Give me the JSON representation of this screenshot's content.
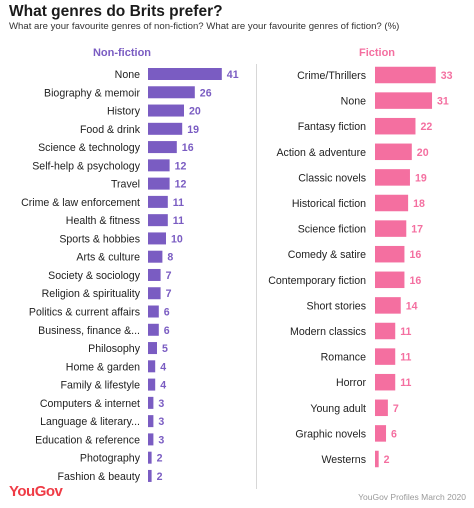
{
  "header": {
    "title": "What genres do Brits prefer?",
    "subtitle": "What are your favourite genres of non-fiction? What are your favourite genres of fiction? (%)"
  },
  "footer": {
    "logo": "YouGov",
    "source": "YouGov Profiles March 2020"
  },
  "colors": {
    "nonfiction": "#7a5cc2",
    "fiction": "#f46fa0"
  },
  "chart_data": [
    {
      "type": "bar",
      "orientation": "horizontal",
      "title": "Non-fiction",
      "categories": [
        "None",
        "Biography & memoir",
        "History",
        "Food & drink",
        "Science & technology",
        "Self-help & psychology",
        "Travel",
        "Crime & law enforcement",
        "Health & fitness",
        "Sports & hobbies",
        "Arts & culture",
        "Society & sociology",
        "Religion & spirituality",
        "Politics & current affairs",
        "Business, finance &...",
        "Philosophy",
        "Home & garden",
        "Family & lifestyle",
        "Computers & internet",
        "Language & literary...",
        "Education & reference",
        "Photography",
        "Fashion & beauty"
      ],
      "values": [
        41,
        26,
        20,
        19,
        16,
        12,
        12,
        11,
        11,
        10,
        8,
        7,
        7,
        6,
        6,
        5,
        4,
        4,
        3,
        3,
        3,
        2,
        2
      ],
      "color": "#7a5cc2"
    },
    {
      "type": "bar",
      "orientation": "horizontal",
      "title": "Fiction",
      "categories": [
        "Crime/Thrillers",
        "None",
        "Fantasy fiction",
        "Action & adventure",
        "Classic novels",
        "Historical fiction",
        "Science fiction",
        "Comedy & satire",
        "Contemporary fiction",
        "Short stories",
        "Modern classics",
        "Romance",
        "Horror",
        "Young adult",
        "Graphic novels",
        "Westerns"
      ],
      "values": [
        33,
        31,
        22,
        20,
        19,
        18,
        17,
        16,
        16,
        14,
        11,
        11,
        11,
        7,
        6,
        2
      ],
      "color": "#f46fa0"
    }
  ]
}
